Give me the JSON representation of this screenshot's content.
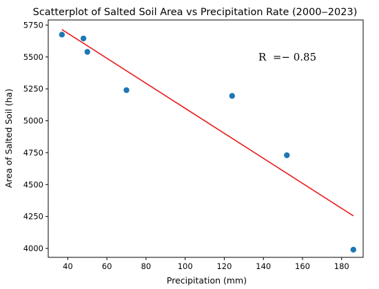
{
  "chart_data": {
    "type": "scatter",
    "title": "Scatterplot of Salted Soil Area vs Precipitation Rate (2000‒2023)",
    "xlabel": "Precipitation (mm)",
    "ylabel": "Area of Salted Soil (ha)",
    "xlim": [
      30,
      191
    ],
    "ylim": [
      3930,
      5790
    ],
    "xticks": [
      40,
      60,
      80,
      100,
      120,
      140,
      160,
      180
    ],
    "yticks": [
      4000,
      4250,
      4500,
      4750,
      5000,
      5250,
      5500,
      5750
    ],
    "points": [
      {
        "x": 37,
        "y": 5675
      },
      {
        "x": 48,
        "y": 5645
      },
      {
        "x": 50,
        "y": 5540
      },
      {
        "x": 70,
        "y": 5240
      },
      {
        "x": 124,
        "y": 5195
      },
      {
        "x": 152,
        "y": 4730
      },
      {
        "x": 186,
        "y": 3990
      }
    ],
    "trend_line": {
      "x": [
        37,
        186
      ],
      "y": [
        5715,
        4255
      ]
    },
    "annotation": "R  =− 0.85",
    "grid": false,
    "colors": {
      "points": "#1f77b4",
      "trend_line": "#e8191b"
    }
  }
}
